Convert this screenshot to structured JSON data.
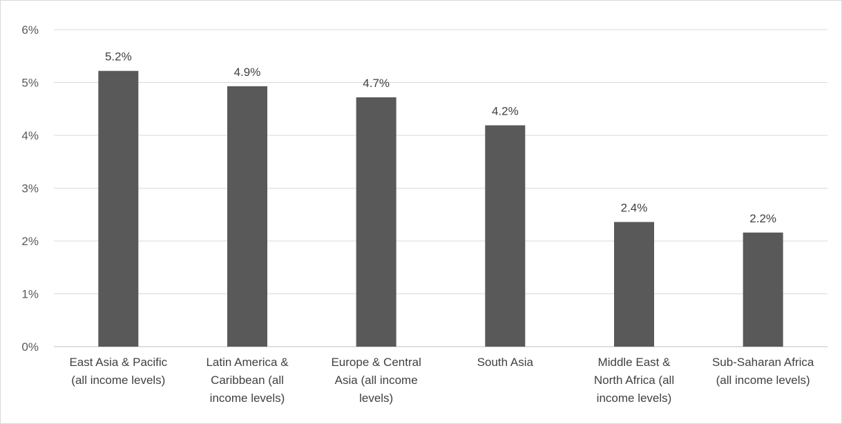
{
  "chart_data": {
    "type": "bar",
    "title": "",
    "xlabel": "",
    "ylabel": "",
    "categories": [
      [
        "East Asia & Pacific",
        "(all income levels)"
      ],
      [
        "Latin America &",
        "Caribbean (all",
        "income levels)"
      ],
      [
        "Europe & Central",
        "Asia (all income",
        "levels)"
      ],
      [
        "South Asia"
      ],
      [
        "Middle East &",
        "North Africa (all",
        "income levels)"
      ],
      [
        "Sub-Saharan Africa",
        "(all income levels)"
      ]
    ],
    "values": [
      5.22,
      4.93,
      4.72,
      4.19,
      2.36,
      2.16
    ],
    "data_labels": [
      "5.2%",
      "4.9%",
      "4.7%",
      "4.2%",
      "2.4%",
      "2.2%"
    ],
    "y_ticks": [
      "0%",
      "1%",
      "2%",
      "3%",
      "4%",
      "5%",
      "6%"
    ],
    "ylim": [
      0,
      6
    ],
    "grid": true,
    "legend": "none",
    "colors": {
      "bar": "#595959",
      "grid": "#d9d9d9",
      "axis": "#bfbfbf"
    }
  }
}
